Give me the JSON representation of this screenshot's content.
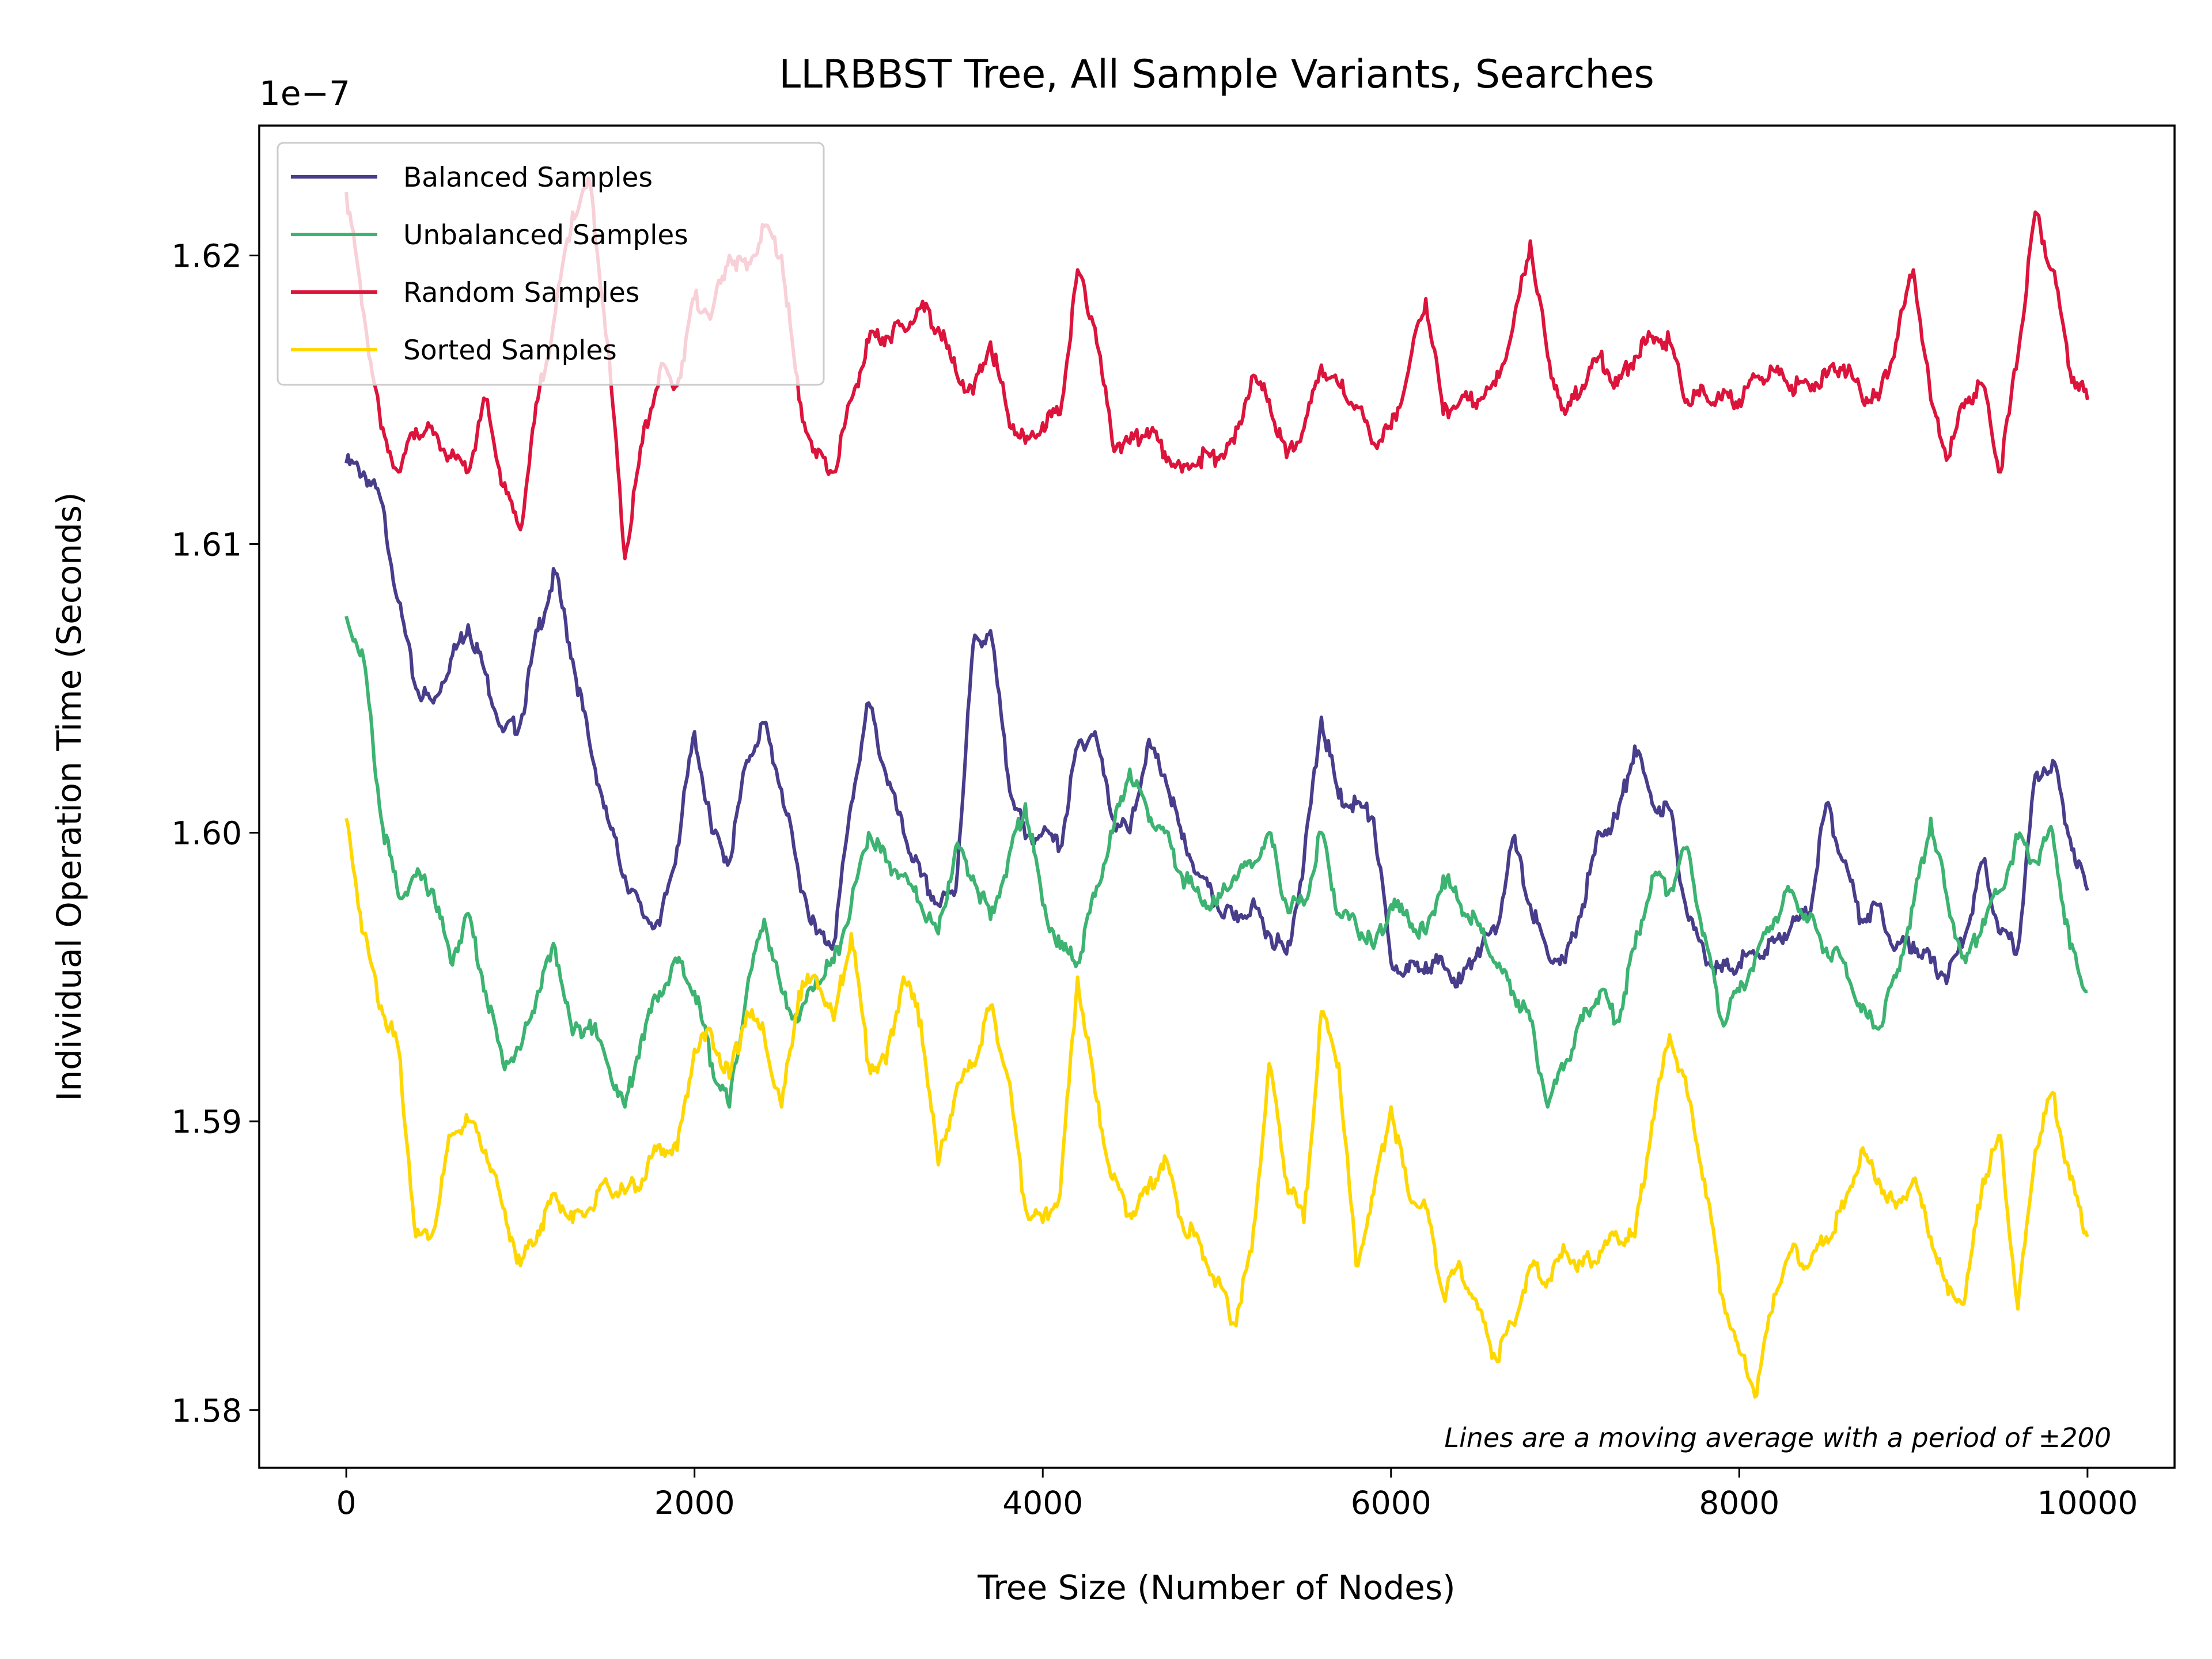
{
  "chart_data": {
    "type": "line",
    "title": "LLRBBST Tree, All Sample Variants, Searches",
    "xlabel": "Tree Size (Number of Nodes)",
    "ylabel": "Individual Operation Time (Seconds)",
    "y_offset_label": "1e−7",
    "annotation": "Lines are a moving average with a period of ±200",
    "xlim": [
      -500,
      10500
    ],
    "ylim": [
      1.578,
      1.6245
    ],
    "x_ticks": [
      0,
      2000,
      4000,
      6000,
      8000,
      10000
    ],
    "x_tick_labels": [
      "0",
      "2000",
      "4000",
      "6000",
      "8000",
      "10000"
    ],
    "y_ticks": [
      1.58,
      1.59,
      1.6,
      1.61,
      1.62
    ],
    "y_tick_labels": [
      "1.58",
      "1.59",
      "1.60",
      "1.61",
      "1.62"
    ],
    "legend_position": "top-left",
    "grid": false,
    "series": [
      {
        "name": "Balanced Samples",
        "color": "#483d8b",
        "x": [
          0,
          100,
          200,
          300,
          400,
          500,
          600,
          700,
          800,
          900,
          1000,
          1100,
          1200,
          1300,
          1400,
          1500,
          1600,
          1700,
          1800,
          1900,
          2000,
          2100,
          2200,
          2300,
          2400,
          2500,
          2600,
          2700,
          2800,
          2900,
          3000,
          3100,
          3200,
          3300,
          3400,
          3500,
          3600,
          3700,
          3800,
          3900,
          4000,
          4100,
          4200,
          4300,
          4400,
          4500,
          4600,
          4700,
          4800,
          4900,
          5000,
          5100,
          5200,
          5300,
          5400,
          5500,
          5600,
          5700,
          5800,
          5900,
          6000,
          6100,
          6200,
          6300,
          6400,
          6500,
          6600,
          6700,
          6800,
          6900,
          7000,
          7100,
          7200,
          7300,
          7400,
          7500,
          7600,
          7700,
          7800,
          7900,
          8000,
          8100,
          8200,
          8300,
          8400,
          8500,
          8600,
          8700,
          8800,
          8900,
          9000,
          9100,
          9200,
          9300,
          9400,
          9500,
          9600,
          9700,
          9800,
          9900,
          10000
        ],
        "y": [
          1.6128,
          1.6125,
          1.6115,
          1.608,
          1.605,
          1.6045,
          1.606,
          1.6072,
          1.6055,
          1.6035,
          1.6038,
          1.607,
          1.609,
          1.606,
          1.603,
          1.6005,
          1.5985,
          1.5972,
          1.5968,
          1.5995,
          1.6035,
          1.6,
          1.599,
          1.6025,
          1.6038,
          1.6015,
          1.5985,
          1.5965,
          1.5962,
          1.601,
          1.6045,
          1.602,
          1.6,
          1.5985,
          1.5975,
          1.598,
          1.6065,
          1.607,
          1.602,
          1.5998,
          1.6,
          1.5995,
          1.603,
          1.6035,
          1.6005,
          1.6,
          1.603,
          1.602,
          1.5998,
          1.5985,
          1.5975,
          1.597,
          1.5975,
          1.5965,
          1.5958,
          1.599,
          1.604,
          1.6012,
          1.601,
          1.6005,
          1.5955,
          1.5952,
          1.5955,
          1.5954,
          1.5948,
          1.596,
          1.5965,
          1.5998,
          1.5975,
          1.5958,
          1.5955,
          1.5975,
          1.6,
          1.6005,
          1.603,
          1.601,
          1.6008,
          1.5972,
          1.5958,
          1.5952,
          1.5955,
          1.5958,
          1.5962,
          1.5968,
          1.5972,
          1.601,
          1.599,
          1.597,
          1.5975,
          1.596,
          1.5962,
          1.5955,
          1.595,
          1.5965,
          1.599,
          1.5965,
          1.596,
          1.602,
          1.6025,
          1.5998,
          1.598
        ]
      },
      {
        "name": "Unbalanced Samples",
        "color": "#3cb371",
        "x": [
          0,
          100,
          200,
          300,
          400,
          500,
          600,
          700,
          800,
          900,
          1000,
          1100,
          1200,
          1300,
          1400,
          1500,
          1600,
          1700,
          1800,
          1900,
          2000,
          2100,
          2200,
          2300,
          2400,
          2500,
          2600,
          2700,
          2800,
          2900,
          3000,
          3100,
          3200,
          3300,
          3400,
          3500,
          3600,
          3700,
          3800,
          3900,
          4000,
          4100,
          4200,
          4300,
          4400,
          4500,
          4600,
          4700,
          4800,
          4900,
          5000,
          5100,
          5200,
          5300,
          5400,
          5500,
          5600,
          5700,
          5800,
          5900,
          6000,
          6100,
          6200,
          6300,
          6400,
          6500,
          6600,
          6700,
          6800,
          6900,
          7000,
          7100,
          7200,
          7300,
          7400,
          7500,
          7600,
          7700,
          7800,
          7900,
          8000,
          8100,
          8200,
          8300,
          8400,
          8500,
          8600,
          8700,
          8800,
          8900,
          9000,
          9100,
          9200,
          9300,
          9400,
          9500,
          9600,
          9700,
          9800,
          9900,
          10000
        ],
        "y": [
          1.6075,
          1.606,
          1.6005,
          1.5978,
          1.5985,
          1.598,
          1.5955,
          1.5972,
          1.5945,
          1.592,
          1.5925,
          1.5945,
          1.596,
          1.593,
          1.5935,
          1.592,
          1.5905,
          1.593,
          1.5945,
          1.5955,
          1.5945,
          1.592,
          1.5905,
          1.5945,
          1.597,
          1.5945,
          1.5935,
          1.595,
          1.5955,
          1.5975,
          1.6,
          1.599,
          1.5985,
          1.5975,
          1.5965,
          1.5995,
          1.5985,
          1.597,
          1.599,
          1.601,
          1.5975,
          1.596,
          1.5955,
          1.5978,
          1.6,
          1.6022,
          1.6008,
          1.6,
          1.5985,
          1.5978,
          1.5975,
          1.5985,
          1.5988,
          1.6,
          1.5975,
          1.5975,
          1.6,
          1.5972,
          1.5968,
          1.596,
          1.5975,
          1.597,
          1.5965,
          1.5985,
          1.5975,
          1.5968,
          1.5955,
          1.5945,
          1.5935,
          1.5905,
          1.592,
          1.5935,
          1.5945,
          1.5935,
          1.596,
          1.5985,
          1.598,
          1.5995,
          1.5965,
          1.5935,
          1.5945,
          1.5958,
          1.597,
          1.598,
          1.597,
          1.596,
          1.5955,
          1.5938,
          1.5932,
          1.595,
          1.5975,
          1.6005,
          1.5975,
          1.5955,
          1.597,
          1.598,
          1.5998,
          1.599,
          1.6,
          1.596,
          1.5945
        ]
      },
      {
        "name": "Random Samples",
        "color": "#dc143c",
        "x": [
          0,
          100,
          200,
          300,
          400,
          500,
          600,
          700,
          800,
          900,
          1000,
          1100,
          1200,
          1300,
          1400,
          1500,
          1600,
          1700,
          1800,
          1900,
          2000,
          2100,
          2200,
          2300,
          2400,
          2500,
          2600,
          2700,
          2800,
          2900,
          3000,
          3100,
          3200,
          3300,
          3400,
          3500,
          3600,
          3700,
          3800,
          3900,
          4000,
          4100,
          4200,
          4300,
          4400,
          4500,
          4600,
          4700,
          4800,
          4900,
          5000,
          5100,
          5200,
          5300,
          5400,
          5500,
          5600,
          5700,
          5800,
          5900,
          6000,
          6100,
          6200,
          6300,
          6400,
          6500,
          6600,
          6700,
          6800,
          6900,
          7000,
          7100,
          7200,
          7300,
          7400,
          7500,
          7600,
          7700,
          7800,
          7900,
          8000,
          8100,
          8200,
          8300,
          8400,
          8500,
          8600,
          8700,
          8800,
          8900,
          9000,
          9100,
          9200,
          9300,
          9400,
          9500,
          9600,
          9700,
          9800,
          9900,
          10000
        ],
        "y": [
          1.6222,
          1.618,
          1.614,
          1.6125,
          1.614,
          1.6138,
          1.613,
          1.6125,
          1.615,
          1.612,
          1.6105,
          1.615,
          1.618,
          1.6215,
          1.6225,
          1.617,
          1.6095,
          1.6135,
          1.616,
          1.6155,
          1.6185,
          1.618,
          1.62,
          1.6195,
          1.621,
          1.62,
          1.615,
          1.613,
          1.6125,
          1.615,
          1.617,
          1.6172,
          1.6175,
          1.6182,
          1.6175,
          1.616,
          1.6152,
          1.617,
          1.6145,
          1.6135,
          1.6142,
          1.6145,
          1.6195,
          1.6175,
          1.6135,
          1.6135,
          1.614,
          1.6132,
          1.6125,
          1.613,
          1.613,
          1.6135,
          1.6158,
          1.615,
          1.613,
          1.614,
          1.6162,
          1.6155,
          1.6148,
          1.6135,
          1.614,
          1.616,
          1.6185,
          1.6145,
          1.615,
          1.615,
          1.6155,
          1.6175,
          1.6205,
          1.6165,
          1.6145,
          1.6155,
          1.6165,
          1.6155,
          1.6165,
          1.6172,
          1.617,
          1.615,
          1.6152,
          1.615,
          1.615,
          1.6158,
          1.616,
          1.6155,
          1.6155,
          1.6158,
          1.6162,
          1.6152,
          1.615,
          1.617,
          1.6195,
          1.615,
          1.613,
          1.615,
          1.6155,
          1.6125,
          1.6165,
          1.6215,
          1.6195,
          1.616,
          1.615
        ]
      },
      {
        "name": "Sorted Samples",
        "color": "#ffd700",
        "x": [
          0,
          100,
          200,
          300,
          400,
          500,
          600,
          700,
          800,
          900,
          1000,
          1100,
          1200,
          1300,
          1400,
          1500,
          1600,
          1700,
          1800,
          1900,
          2000,
          2100,
          2200,
          2300,
          2400,
          2500,
          2600,
          2700,
          2800,
          2900,
          3000,
          3100,
          3200,
          3300,
          3400,
          3500,
          3600,
          3700,
          3800,
          3900,
          4000,
          4100,
          4200,
          4300,
          4400,
          4500,
          4600,
          4700,
          4800,
          4900,
          5000,
          5100,
          5200,
          5300,
          5400,
          5500,
          5600,
          5700,
          5800,
          5900,
          6000,
          6100,
          6200,
          6300,
          6400,
          6500,
          6600,
          6700,
          6800,
          6900,
          7000,
          7100,
          7200,
          7300,
          7400,
          7500,
          7600,
          7700,
          7800,
          7900,
          8000,
          8100,
          8200,
          8300,
          8400,
          8500,
          8600,
          8700,
          8800,
          8900,
          9000,
          9100,
          9200,
          9300,
          9400,
          9500,
          9600,
          9700,
          9800,
          9900,
          10000
        ],
        "y": [
          1.6005,
          1.5965,
          1.594,
          1.5925,
          1.586,
          1.5862,
          1.5895,
          1.59,
          1.589,
          1.587,
          1.585,
          1.5862,
          1.5875,
          1.5865,
          1.587,
          1.5878,
          1.5875,
          1.588,
          1.5892,
          1.589,
          1.5925,
          1.593,
          1.5915,
          1.5938,
          1.593,
          1.5905,
          1.5945,
          1.595,
          1.5935,
          1.5965,
          1.592,
          1.592,
          1.595,
          1.5935,
          1.5885,
          1.591,
          1.592,
          1.594,
          1.5915,
          1.587,
          1.5865,
          1.5875,
          1.595,
          1.591,
          1.588,
          1.5868,
          1.5875,
          1.5888,
          1.5865,
          1.5858,
          1.5845,
          1.583,
          1.5855,
          1.592,
          1.588,
          1.5865,
          1.5938,
          1.592,
          1.585,
          1.5875,
          1.5905,
          1.5875,
          1.587,
          1.584,
          1.585,
          1.5835,
          1.5818,
          1.583,
          1.585,
          1.5845,
          1.5855,
          1.585,
          1.5855,
          1.586,
          1.586,
          1.59,
          1.593,
          1.591,
          1.588,
          1.584,
          1.582,
          1.5805,
          1.584,
          1.5855,
          1.585,
          1.586,
          1.587,
          1.589,
          1.588,
          1.587,
          1.588,
          1.586,
          1.584,
          1.584,
          1.588,
          1.5895,
          1.5835,
          1.589,
          1.591,
          1.588,
          1.586
        ]
      }
    ]
  }
}
